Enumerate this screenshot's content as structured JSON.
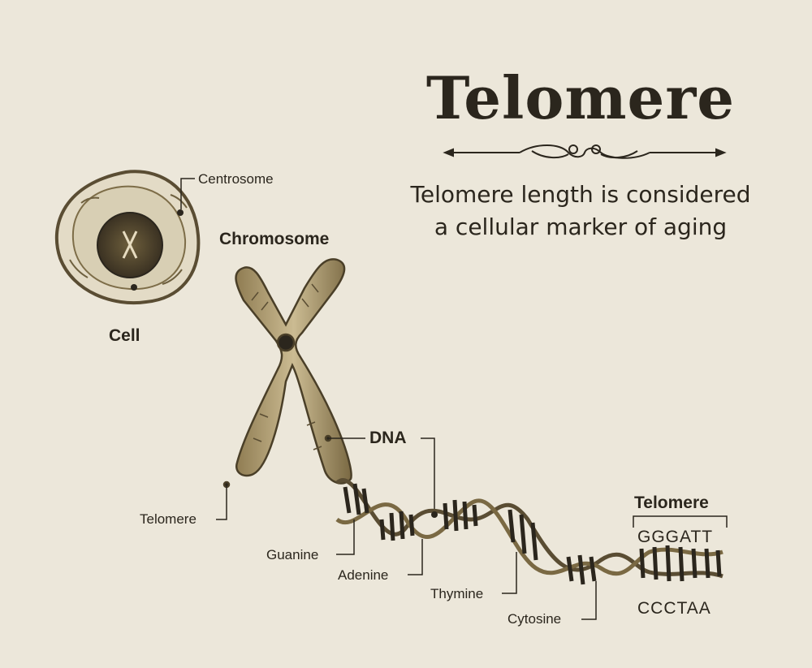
{
  "title": "Telomere",
  "subtitle_line1": "Telomere length is considered",
  "subtitle_line2": "a cellular marker of aging",
  "labels": {
    "centrosome": "Centrosome",
    "cell": "Cell",
    "chromosome": "Chromosome",
    "dna": "DNA",
    "telomere_chromosome": "Telomere",
    "guanine": "Guanine",
    "adenine": "Adenine",
    "thymine": "Thymine",
    "cytosine": "Cytosine",
    "telomere_sequence": "Telomere"
  },
  "sequences": {
    "top": "GGGATT",
    "bottom": "CCCTAA"
  },
  "colors": {
    "background": "#ece7da",
    "ink": "#2b261d",
    "sepia": "#8a7a52"
  }
}
